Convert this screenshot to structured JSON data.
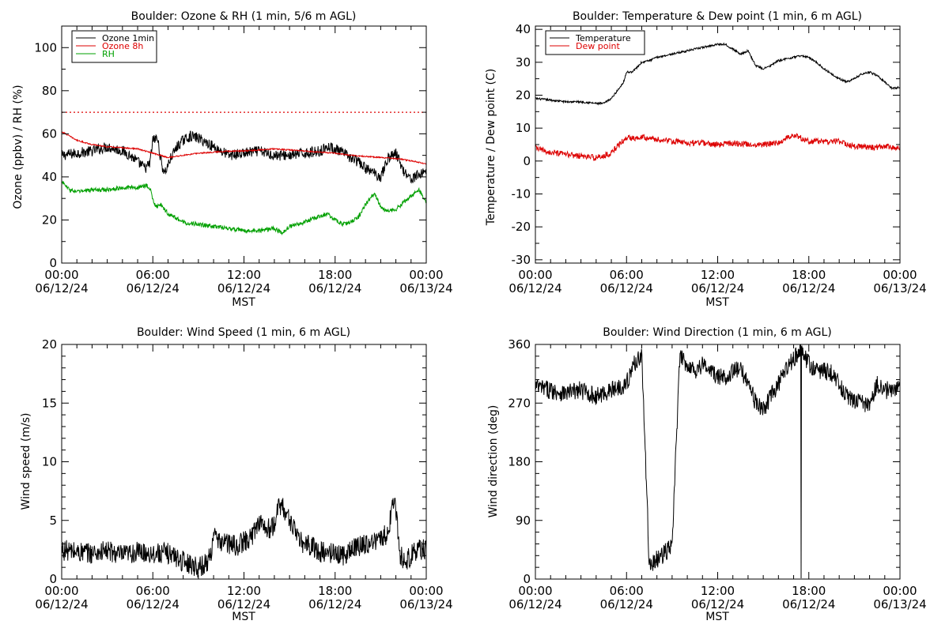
{
  "chart_data": [
    {
      "id": "ozone_rh",
      "type": "line",
      "title": "Boulder: Ozone & RH (1 min, 5/6 m AGL)",
      "xlabel": "MST",
      "ylabel": "Ozone (ppbv) / RH (%)",
      "xlim": [
        0,
        24
      ],
      "ylim": [
        0,
        110
      ],
      "yticks": [
        0,
        20,
        40,
        60,
        80,
        100
      ],
      "xtick_times": [
        "00:00",
        "06:00",
        "12:00",
        "18:00",
        "00:00"
      ],
      "xtick_dates": [
        "06/12/24",
        "06/12/24",
        "06/12/24",
        "06/12/24",
        "06/13/24"
      ],
      "legend": "top-left",
      "reference_line": {
        "y": 70,
        "color": "#dd0000",
        "style": "dotted"
      },
      "series": [
        {
          "name": "Ozone 1min",
          "color": "#000000",
          "noise": 2.5,
          "x": [
            0,
            1,
            2,
            3,
            4,
            4.5,
            5.0,
            5.5,
            5.8,
            6.0,
            6.3,
            6.6,
            6.8,
            7.2,
            7.6,
            8.0,
            8.5,
            9.0,
            9.5,
            10,
            10.5,
            11,
            12,
            13,
            14,
            15,
            16,
            17,
            17.5,
            18,
            18.5,
            19,
            19.5,
            20,
            20.5,
            21,
            21.5,
            22,
            22.5,
            23,
            23.5,
            24
          ],
          "y": [
            50,
            51,
            52,
            54,
            52,
            50,
            47,
            44,
            46,
            57,
            58,
            45,
            42,
            49,
            54,
            57,
            59,
            58,
            56,
            54,
            52,
            50,
            51,
            52,
            50,
            50,
            51,
            52,
            54,
            53,
            51,
            49,
            47,
            44,
            42,
            40,
            49,
            51,
            43,
            39,
            41,
            43
          ]
        },
        {
          "name": "Ozone 8h",
          "color": "#dd0000",
          "noise": 0.3,
          "x": [
            0,
            1,
            2,
            3,
            4,
            5,
            6,
            7,
            8,
            9,
            10,
            11,
            12,
            13,
            14,
            15,
            16,
            17,
            18,
            19,
            20,
            21,
            22,
            23,
            24
          ],
          "y": [
            61,
            57,
            55,
            54,
            53.5,
            53,
            51,
            49,
            50,
            51,
            51.5,
            52,
            52,
            52.5,
            53,
            52.5,
            52,
            51.5,
            51,
            50,
            49.5,
            49,
            48.5,
            47.5,
            46
          ]
        },
        {
          "name": "RH",
          "color": "#00a000",
          "noise": 1.0,
          "x": [
            0,
            0.5,
            1,
            2,
            3,
            4,
            5,
            5.5,
            5.8,
            6.0,
            6.2,
            6.5,
            7,
            7.5,
            8,
            9,
            10,
            11,
            12,
            13,
            14,
            14.5,
            15,
            16,
            17,
            17.5,
            18,
            18.5,
            19,
            19.5,
            20,
            20.5,
            20.7,
            21,
            21.5,
            22,
            22.5,
            23,
            23.5,
            24
          ],
          "y": [
            38,
            34,
            33,
            34,
            34,
            35,
            35,
            36,
            35,
            30,
            26,
            27,
            23,
            21,
            19,
            18,
            17,
            16,
            15,
            15,
            16,
            14,
            17,
            19,
            22,
            23,
            20,
            18,
            19,
            21,
            27,
            32,
            31,
            26,
            24,
            25,
            28,
            31,
            34,
            28
          ]
        }
      ]
    },
    {
      "id": "temp_dew",
      "type": "line",
      "title": "Boulder: Temperature & Dew point (1 min, 6 m AGL)",
      "xlabel": "MST",
      "ylabel": "Temperature / Dew point (C)",
      "xlim": [
        0,
        24
      ],
      "ylim": [
        -31,
        41
      ],
      "yticks": [
        -30,
        -20,
        -10,
        0,
        10,
        20,
        30,
        40
      ],
      "xtick_times": [
        "00:00",
        "06:00",
        "12:00",
        "18:00",
        "00:00"
      ],
      "xtick_dates": [
        "06/12/24",
        "06/12/24",
        "06/12/24",
        "06/12/24",
        "06/13/24"
      ],
      "legend": "top-left",
      "series": [
        {
          "name": "Temperature",
          "color": "#000000",
          "noise": 0.3,
          "x": [
            0,
            1,
            2,
            3,
            4,
            4.5,
            5,
            5.5,
            5.8,
            6,
            6.3,
            6.6,
            7,
            7.5,
            8,
            9,
            10,
            11,
            12,
            12.5,
            13,
            13.5,
            14,
            14.5,
            15,
            15.5,
            16,
            17,
            17.5,
            18,
            18.5,
            19,
            20,
            20.5,
            21,
            21.5,
            22,
            22.5,
            23,
            23.5,
            24
          ],
          "y": [
            19,
            18.5,
            18,
            18,
            17.5,
            17.5,
            19,
            22,
            24,
            27,
            27,
            28,
            30,
            30.5,
            31.5,
            32.5,
            33.5,
            34.5,
            35.5,
            35.5,
            34,
            32.5,
            33.5,
            29,
            28,
            29,
            30.5,
            31.5,
            32,
            31.5,
            30,
            28,
            25,
            24,
            25,
            26.5,
            27,
            26,
            24,
            22,
            22.5
          ]
        },
        {
          "name": "Dew point",
          "color": "#dd0000",
          "noise": 0.9,
          "x": [
            0,
            1,
            2,
            3,
            4,
            4.5,
            5,
            5.5,
            6,
            6.5,
            7,
            8,
            9,
            10,
            11,
            12,
            13,
            14,
            15,
            16,
            17,
            18,
            19,
            20,
            20.5,
            21,
            22,
            23,
            24
          ],
          "y": [
            4,
            2.5,
            2,
            1.5,
            1,
            1.5,
            2.5,
            5,
            7,
            7,
            7.5,
            6.5,
            6,
            5.5,
            5.5,
            5,
            5.5,
            5,
            5,
            5.5,
            8,
            6,
            6,
            6,
            5,
            4.5,
            4,
            4.5,
            4
          ]
        }
      ]
    },
    {
      "id": "wind_speed",
      "type": "line",
      "title": "Boulder: Wind Speed (1 min, 6 m AGL)",
      "xlabel": "MST",
      "ylabel": "Wind speed (m/s)",
      "xlim": [
        0,
        24
      ],
      "ylim": [
        0,
        20
      ],
      "yticks": [
        0,
        5,
        10,
        15,
        20
      ],
      "xtick_times": [
        "00:00",
        "06:00",
        "12:00",
        "18:00",
        "00:00"
      ],
      "xtick_dates": [
        "06/12/24",
        "06/12/24",
        "06/12/24",
        "06/12/24",
        "06/13/24"
      ],
      "series": [
        {
          "name": "",
          "color": "#000000",
          "noise": 0.9,
          "floor": 0,
          "x": [
            0,
            1,
            2,
            3,
            4,
            5,
            6,
            7,
            7.5,
            8,
            8.5,
            9,
            9.5,
            9.8,
            10,
            10.3,
            10.6,
            11,
            11.5,
            12,
            12.5,
            13,
            13.5,
            14,
            14.3,
            14.6,
            15,
            15.3,
            15.6,
            16,
            16.5,
            17,
            18,
            18.5,
            19,
            19.5,
            20,
            20.5,
            21,
            21.5,
            21.8,
            22,
            22.3,
            22.6,
            23,
            23.5,
            24
          ],
          "y": [
            2.5,
            2.3,
            2.2,
            2.4,
            2.0,
            2.3,
            2.2,
            2.2,
            1.9,
            1.5,
            1.3,
            1.0,
            1.3,
            2.0,
            4.0,
            3.0,
            3.3,
            3.0,
            2.8,
            3.2,
            3.6,
            5.0,
            4.2,
            4.5,
            6.5,
            6.0,
            5.0,
            4.5,
            3.2,
            3.0,
            2.8,
            2.3,
            2.2,
            2.0,
            2.5,
            2.8,
            3.0,
            3.2,
            3.4,
            4.0,
            6.5,
            6.0,
            2.0,
            1.5,
            2.0,
            2.5,
            2.5
          ]
        }
      ]
    },
    {
      "id": "wind_dir",
      "type": "line",
      "title": "Boulder: Wind Direction (1 min, 6 m AGL)",
      "xlabel": "MST",
      "ylabel": "Wind direction (deg)",
      "xlim": [
        0,
        24
      ],
      "ylim": [
        0,
        360
      ],
      "yticks": [
        0,
        90,
        180,
        270,
        360
      ],
      "xtick_times": [
        "00:00",
        "06:00",
        "12:00",
        "18:00",
        "00:00"
      ],
      "xtick_dates": [
        "06/12/24",
        "06/12/24",
        "06/12/24",
        "06/12/24",
        "06/13/24"
      ],
      "series": [
        {
          "name": "",
          "color": "#000000",
          "noise": 14,
          "wrap": true,
          "x": [
            0,
            1,
            2,
            3,
            4,
            5,
            6,
            6.5,
            7,
            7.5,
            8,
            8.5,
            9,
            9.5,
            10,
            10.5,
            11,
            11.5,
            12,
            12.5,
            13,
            13.5,
            14,
            14.5,
            15,
            15.5,
            16,
            16.5,
            17,
            17.5,
            18,
            18.5,
            19,
            19.5,
            20,
            20.5,
            21,
            21.5,
            22,
            22.5,
            23,
            23.5,
            24
          ],
          "y": [
            295,
            290,
            285,
            290,
            280,
            290,
            300,
            330,
            345,
            20,
            30,
            40,
            50,
            340,
            330,
            320,
            330,
            320,
            310,
            310,
            320,
            320,
            305,
            270,
            260,
            280,
            300,
            320,
            340,
            350,
            330,
            320,
            320,
            315,
            300,
            280,
            275,
            270,
            265,
            300,
            290,
            290,
            295
          ]
        }
      ]
    }
  ]
}
